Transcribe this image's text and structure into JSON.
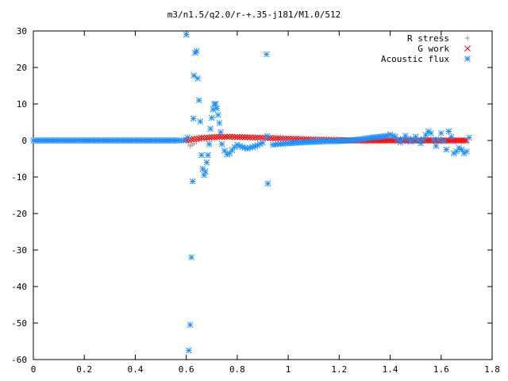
{
  "chart_data": {
    "type": "scatter",
    "title": "m3/n1.5/q2.0/r-+.35-j181/M1.0/512",
    "xlabel": "",
    "ylabel": "",
    "xlim": [
      0,
      1.8
    ],
    "ylim": [
      -60,
      30
    ],
    "grid": false,
    "legend_placement": "top-right",
    "x_ticks": [
      "0",
      "0.2",
      "0.4",
      "0.6",
      "0.8",
      "1",
      "1.2",
      "1.4",
      "1.6",
      "1.8"
    ],
    "y_ticks": [
      "30",
      "20",
      "10",
      "0",
      "-10",
      "-20",
      "-30",
      "-40",
      "-50",
      "-60"
    ],
    "x_tick_values": [
      0,
      0.2,
      0.4,
      0.6,
      0.8,
      1.0,
      1.2,
      1.4,
      1.6,
      1.8
    ],
    "y_tick_values": [
      30,
      20,
      10,
      0,
      -10,
      -20,
      -30,
      -40,
      -50,
      -60
    ],
    "series": [
      {
        "name": "R stress",
        "marker": "plus",
        "color": "#a0a0a0",
        "x": [
          0.6,
          0.615,
          0.63,
          0.65,
          0.67,
          0.7,
          0.73,
          0.76,
          0.8,
          0.84,
          0.88,
          0.92,
          0.96,
          1.0,
          1.05,
          1.1,
          1.15,
          1.2,
          1.3,
          1.4,
          1.5,
          1.6,
          1.7
        ],
        "y": [
          0.3,
          -1.5,
          -0.8,
          0.2,
          0.4,
          0.6,
          0.8,
          1.0,
          1.0,
          0.9,
          0.9,
          0.8,
          0.7,
          0.6,
          0.5,
          0.4,
          0.3,
          0.2,
          0.0,
          0.1,
          0.0,
          0.0,
          0.0
        ]
      },
      {
        "name": "G work",
        "marker": "cross",
        "color": "#ff0000",
        "x": [
          0.6,
          0.62,
          0.64,
          0.66,
          0.68,
          0.7,
          0.72,
          0.74,
          0.76,
          0.78,
          0.8,
          0.82,
          0.84,
          0.86,
          0.88,
          0.9,
          0.92,
          0.94,
          0.96,
          0.98,
          1.0,
          1.02,
          1.04,
          1.06,
          1.08,
          1.1,
          1.12,
          1.14,
          1.16,
          1.18,
          1.2,
          1.25,
          1.3,
          1.35,
          1.4,
          1.45,
          1.5,
          1.55,
          1.6,
          1.65,
          1.7
        ],
        "y": [
          0.1,
          0.3,
          0.5,
          0.7,
          0.8,
          0.9,
          1.0,
          1.0,
          1.0,
          1.0,
          0.9,
          0.9,
          0.9,
          0.8,
          0.8,
          0.7,
          0.7,
          0.6,
          0.6,
          0.5,
          0.5,
          0.4,
          0.4,
          0.3,
          0.3,
          0.2,
          0.2,
          0.2,
          0.1,
          0.1,
          0.1,
          0.0,
          0.0,
          0.0,
          0.0,
          0.0,
          0.0,
          0.0,
          0.0,
          0.0,
          0.0
        ]
      },
      {
        "name": "Acoustic flux",
        "marker": "star",
        "color": "#1e90ff",
        "x": [
          0.0,
          0.03,
          0.06,
          0.09,
          0.12,
          0.15,
          0.18,
          0.21,
          0.24,
          0.27,
          0.3,
          0.33,
          0.36,
          0.39,
          0.42,
          0.45,
          0.48,
          0.51,
          0.54,
          0.57,
          0.59,
          0.6,
          0.605,
          0.61,
          0.615,
          0.62,
          0.625,
          0.628,
          0.63,
          0.635,
          0.64,
          0.645,
          0.65,
          0.655,
          0.66,
          0.665,
          0.67,
          0.675,
          0.68,
          0.685,
          0.69,
          0.695,
          0.7,
          0.705,
          0.71,
          0.715,
          0.72,
          0.725,
          0.73,
          0.735,
          0.74,
          0.75,
          0.76,
          0.77,
          0.78,
          0.79,
          0.8,
          0.82,
          0.84,
          0.86,
          0.88,
          0.9,
          0.915,
          0.918,
          0.92,
          0.94,
          0.96,
          0.98,
          1.0,
          1.03,
          1.06,
          1.09,
          1.12,
          1.15,
          1.18,
          1.21,
          1.24,
          1.27,
          1.3,
          1.33,
          1.36,
          1.39,
          1.4,
          1.42,
          1.44,
          1.46,
          1.48,
          1.5,
          1.52,
          1.54,
          1.55,
          1.56,
          1.58,
          1.6,
          1.62,
          1.63,
          1.64,
          1.65,
          1.66,
          1.67,
          1.68,
          1.69,
          1.7,
          1.71
        ],
        "y": [
          0,
          0,
          0,
          0,
          0,
          0,
          0,
          0,
          0,
          0,
          0,
          0,
          0,
          0,
          0,
          0,
          0,
          0,
          0,
          0,
          0,
          29,
          0.8,
          -57.5,
          -50.5,
          -32,
          -11.2,
          6,
          17.8,
          24,
          24.5,
          17,
          11,
          5.2,
          -4,
          -7.8,
          -9.5,
          -8.5,
          -6,
          -4,
          -1,
          3.2,
          6.2,
          8.5,
          10,
          10,
          8.8,
          7,
          4.8,
          2.3,
          -1,
          -2.8,
          -3.8,
          -3.5,
          -2.6,
          -1.8,
          -1.2,
          -1.8,
          -2.2,
          -1.8,
          -1.3,
          -0.6,
          23.6,
          1.2,
          -11.8,
          -1.2,
          -1.0,
          -0.9,
          -0.8,
          -0.6,
          -0.5,
          -0.4,
          -0.3,
          -0.2,
          -0.2,
          -0.1,
          0.0,
          0.2,
          0.5,
          0.8,
          1.0,
          1.3,
          1.6,
          1.0,
          -0.5,
          1.3,
          -0.3,
          1.0,
          -0.8,
          1.5,
          2.5,
          2.0,
          -1.5,
          2.0,
          -2.5,
          2.5,
          1.0,
          -3.5,
          -3.0,
          -2.0,
          -2.5,
          -3.5,
          -3.0,
          0.8
        ]
      }
    ]
  }
}
